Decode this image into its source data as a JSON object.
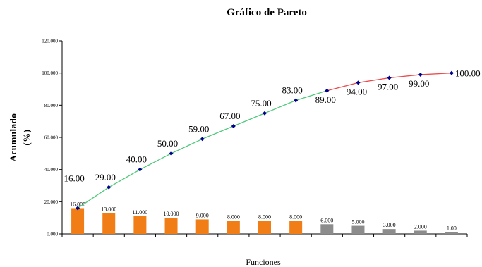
{
  "chart_data": {
    "type": "bar",
    "title": "Gráfico de Pareto",
    "xlabel": "Funciones",
    "ylabel_line1": "Acumulado",
    "ylabel_line2": "(%)",
    "ylim": [
      0,
      120
    ],
    "yticks": [
      "0.000",
      "20.000",
      "40.000",
      "60.000",
      "80.000",
      "100.000",
      "120.000"
    ],
    "grid": false,
    "colors": {
      "bar_primary": "#f07d15",
      "bar_secondary": "#8c8c8c",
      "line_primary": "#4fc97a",
      "line_secondary": "#f04848",
      "marker": "#00008b"
    },
    "series": [
      {
        "name": "",
        "type": "bar",
        "values": [
          16,
          13,
          11,
          10,
          9,
          8,
          8,
          8,
          6,
          5,
          3,
          2,
          1
        ],
        "labels": [
          "16.000",
          "13.000",
          "11.000",
          "10.000",
          "9.000",
          "8.000",
          "8.000",
          "8.000",
          "6.000",
          "5.000",
          "3.000",
          "2.000",
          "1.00"
        ],
        "primary_count": 8
      },
      {
        "name": "",
        "type": "line",
        "values": [
          16,
          29,
          40,
          50,
          59,
          67,
          75,
          83,
          89,
          94,
          97,
          99,
          100
        ],
        "labels": [
          "16.00",
          "29.00",
          "40.00",
          "50.00",
          "59.00",
          "67.00",
          "75.00",
          "83.00",
          "89.00",
          "94.00",
          "97.00",
          "99.00",
          "100.00"
        ],
        "primary_count": 9
      }
    ]
  }
}
